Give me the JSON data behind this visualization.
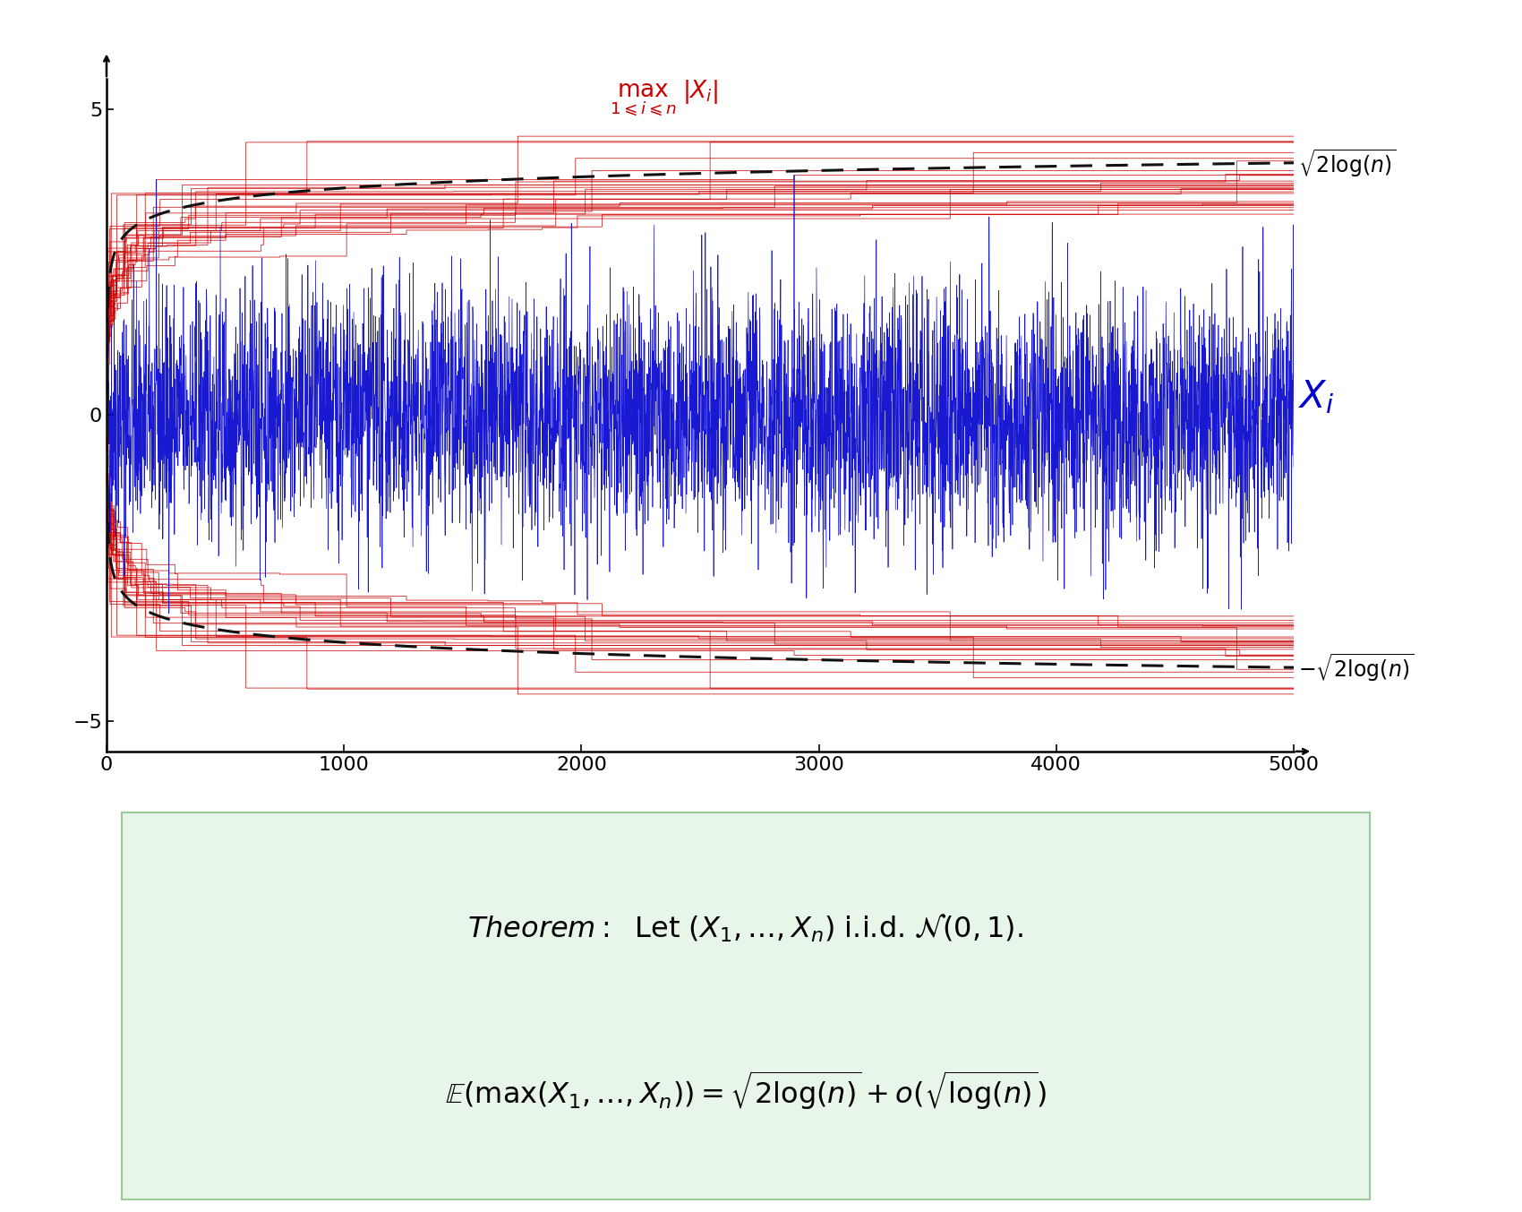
{
  "n_samples": 5000,
  "n_realizations": 30,
  "seed": 42,
  "xlim": [
    0,
    5000
  ],
  "ylim": [
    -5.5,
    5.8
  ],
  "yticks": [
    -5,
    0,
    5
  ],
  "xticks": [
    0,
    1000,
    2000,
    3000,
    4000,
    5000
  ],
  "blue_color": "#0000cc",
  "red_color": "#cc0000",
  "dashed_color": "#111111",
  "bg_color": "#ffffff",
  "theorem_bg": "#e8f5e9",
  "figure_bg": "#ffffff",
  "theory_end": 3.854,
  "theory_neg_end": -3.854
}
